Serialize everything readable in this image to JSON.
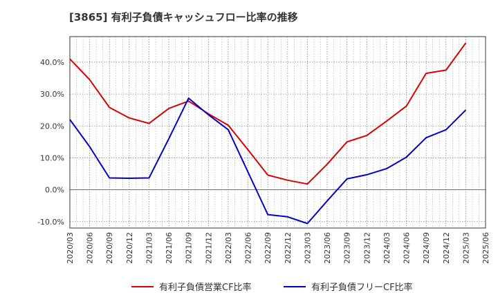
{
  "chart_data": {
    "type": "line",
    "title": "[3865]  有利子負債キャッシュフロー比率の推移",
    "x": [
      "2020/03",
      "2020/06",
      "2020/09",
      "2020/12",
      "2021/03",
      "2021/06",
      "2021/09",
      "2021/12",
      "2022/03",
      "2022/06",
      "2022/09",
      "2022/12",
      "2023/03",
      "2023/06",
      "2023/09",
      "2023/12",
      "2024/03",
      "2024/06",
      "2024/09",
      "2024/12",
      "2025/03",
      "2025/06"
    ],
    "yticks": [
      "-10.0%",
      "0.0%",
      "10.0%",
      "20.0%",
      "30.0%",
      "40.0%"
    ],
    "ylim": [
      -12,
      48
    ],
    "series": [
      {
        "name": "有利子負債営業CF比率",
        "color": "#dd0000",
        "values": [
          41.0,
          34.5,
          25.8,
          22.5,
          20.8,
          25.5,
          27.8,
          23.8,
          20.2,
          12.5,
          4.6,
          3.0,
          1.8,
          8.0,
          15.0,
          17.0,
          21.5,
          26.2,
          36.5,
          37.5,
          46.0,
          null
        ]
      },
      {
        "name": "有利子負債フリーCF比率",
        "color": "#0000cc",
        "values": [
          22.0,
          13.5,
          3.7,
          3.6,
          3.7,
          16.0,
          28.7,
          23.5,
          18.8,
          5.5,
          -7.8,
          -8.5,
          -10.6,
          -3.5,
          3.4,
          4.7,
          6.6,
          10.2,
          16.3,
          18.8,
          25.0,
          null
        ]
      }
    ],
    "grid": true,
    "legend": "bottom"
  }
}
